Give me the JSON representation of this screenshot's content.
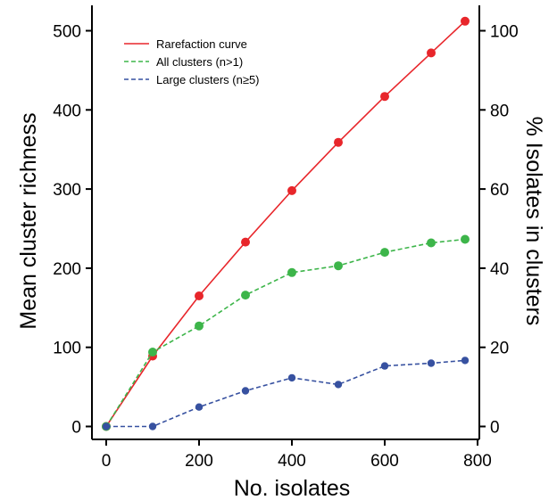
{
  "chart_data": {
    "type": "line",
    "xlabel": "No. isolates",
    "ylabel": "Mean cluster richness",
    "y2label": "% Isolates in clusters",
    "xlim": [
      0,
      800
    ],
    "ylim": [
      0,
      530
    ],
    "y2lim": [
      0,
      106
    ],
    "xticks": [
      "0",
      "200",
      "400",
      "600",
      "800"
    ],
    "yticks": [
      "0",
      "100",
      "200",
      "300",
      "400",
      "500"
    ],
    "y2ticks": [
      "0",
      "20",
      "40",
      "60",
      "80",
      "100"
    ],
    "grid": false,
    "legend_position": "top-left",
    "series": [
      {
        "name": "Rarefaction curve",
        "axis": "left",
        "color": "#e8262b",
        "dash": "solid",
        "x": [
          0,
          100,
          200,
          300,
          400,
          500,
          600,
          700,
          773
        ],
        "values": [
          0,
          89,
          165,
          233,
          298,
          359,
          417,
          472,
          512
        ]
      },
      {
        "name": "All clusters (n>1)",
        "axis": "right",
        "color": "#3db54a",
        "dash": "dashed",
        "x": [
          0,
          100,
          200,
          300,
          400,
          500,
          600,
          700,
          773
        ],
        "values": [
          0,
          18.8,
          25.4,
          33.2,
          38.9,
          40.6,
          44.0,
          46.4,
          47.3
        ]
      },
      {
        "name": "Large clusters (n≥5)",
        "axis": "right",
        "color": "#3751a0",
        "dash": "dashed",
        "x": [
          0,
          100,
          200,
          300,
          400,
          500,
          600,
          700,
          773
        ],
        "values": [
          0,
          0,
          4.9,
          9.0,
          12.3,
          10.6,
          15.3,
          16.0,
          16.7
        ]
      }
    ]
  }
}
